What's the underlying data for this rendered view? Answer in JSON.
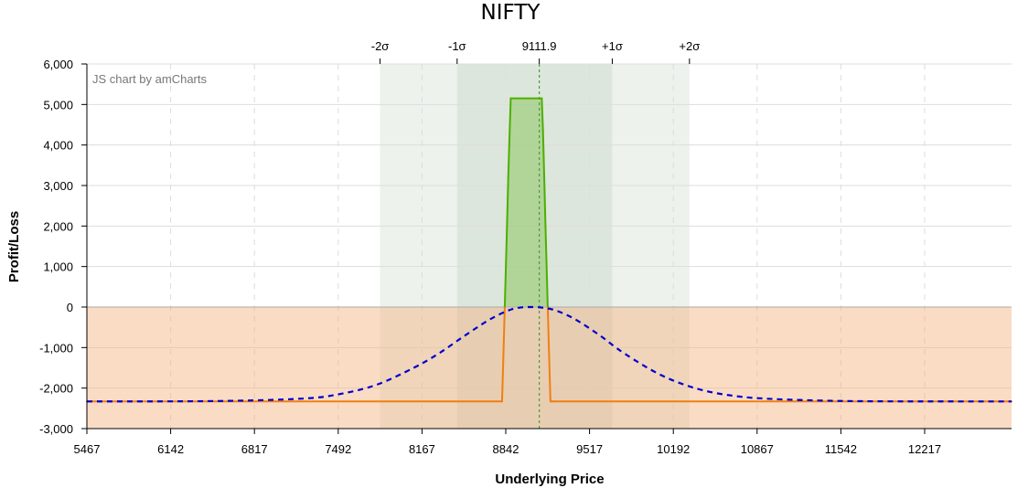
{
  "chart_data": {
    "type": "line",
    "title": "NIFTY",
    "credit": "JS chart by amCharts",
    "xlabel": "Underlying Price",
    "ylabel": "Profit/Loss",
    "xlim": [
      5467,
      12917
    ],
    "ylim": [
      -3000,
      6000
    ],
    "x_ticks": [
      5467,
      6142,
      6817,
      7492,
      8167,
      8842,
      9517,
      10192,
      10867,
      11542,
      12217
    ],
    "x_tick_labels": [
      "5467",
      "6142",
      "6817",
      "7492",
      "8167",
      "8842",
      "9517",
      "10192",
      "10867",
      "11542",
      "12217"
    ],
    "y_ticks": [
      -3000,
      -2000,
      -1000,
      0,
      1000,
      2000,
      3000,
      4000,
      5000,
      6000
    ],
    "y_tick_labels": [
      "-3,000",
      "-2,000",
      "-1,000",
      "0",
      "1,000",
      "2,000",
      "3,000",
      "4,000",
      "5,000",
      "6,000"
    ],
    "grid": true,
    "spot": {
      "value": 9111.9,
      "label": "9111.9"
    },
    "sigma_bands": [
      {
        "label": "-2σ",
        "value": 7829
      },
      {
        "label": "-1σ",
        "value": 8450
      },
      {
        "label": "+1σ",
        "value": 9700
      },
      {
        "label": "+2σ",
        "value": 10322
      }
    ],
    "series": [
      {
        "type": "payoff",
        "profit_color": "#4caf00",
        "loss_color": "#f07f11",
        "x": [
          5467,
          8812,
          8822,
          8832,
          8842,
          8852,
          8862,
          8872,
          8882,
          9132,
          9142,
          9152,
          9162,
          9172,
          9182,
          9192,
          9202,
          9212,
          9222,
          12917
        ],
        "values": [
          -2330,
          -2330,
          -1300,
          -200,
          900,
          2000,
          3200,
          4200,
          5150,
          5150,
          4350,
          3200,
          2000,
          900,
          -200,
          -1300,
          -2330,
          -2330,
          -2330,
          -2330
        ]
      },
      {
        "type": "probability",
        "color": "#0000cc",
        "x": [
          5467,
          6500,
          7200,
          7500,
          7800,
          8100,
          8300,
          8500,
          8700,
          8850,
          8950,
          9050,
          9150,
          9250,
          9400,
          9600,
          9800,
          10100,
          10400,
          10700,
          11000,
          11500,
          12000,
          12917
        ],
        "values": [
          -2330,
          -2320,
          -2260,
          -2150,
          -1920,
          -1500,
          -1150,
          -730,
          -330,
          -100,
          -15,
          0,
          -20,
          -90,
          -300,
          -700,
          -1150,
          -1690,
          -2030,
          -2200,
          -2270,
          -2315,
          -2328,
          -2330
        ]
      }
    ],
    "colors": {
      "band_outer": "#e9efe7",
      "band_inner": "#cfdcd0",
      "loss_zone": "#f4b27e",
      "spot_line": "#4a9a3a",
      "grid": "#dddddd",
      "zero_line": "#aaaaaa"
    }
  }
}
